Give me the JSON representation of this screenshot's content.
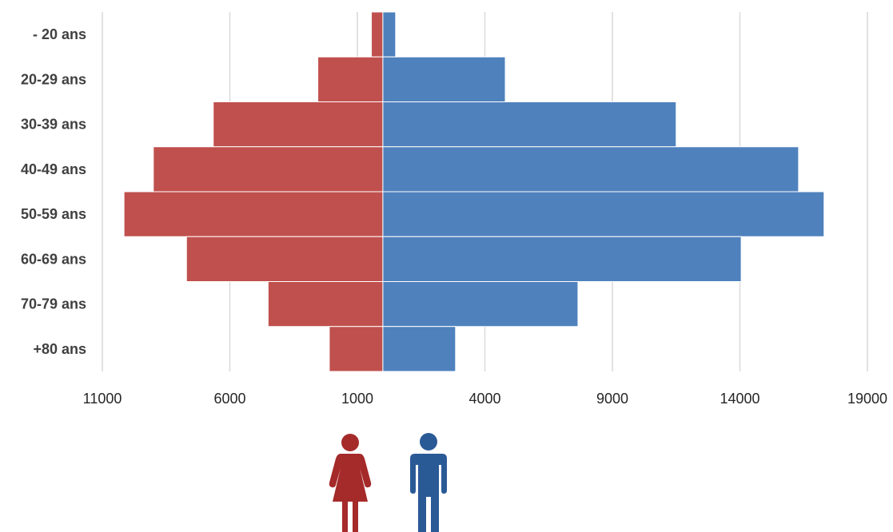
{
  "chart_data": {
    "type": "bar",
    "orientation": "horizontal",
    "style": "population-pyramid",
    "categories": [
      "- 20 ans",
      "20-29 ans",
      "30-39 ans",
      "40-49 ans",
      "50-59 ans",
      "60-69 ans",
      "70-79 ans",
      "+80 ans"
    ],
    "series": [
      {
        "color": "#c0504d",
        "side": "left",
        "values": [
          450,
          2550,
          6650,
          9000,
          10150,
          7700,
          4500,
          2100
        ]
      },
      {
        "color": "#4f81bd",
        "side": "right",
        "values": [
          500,
          4800,
          11500,
          16300,
          17300,
          14050,
          7650,
          2850
        ]
      }
    ],
    "tick_labels": [
      "11000",
      "6000",
      "1000",
      "4000",
      "9000",
      "14000",
      "19000"
    ],
    "xlim": [
      -11000,
      19000
    ],
    "grid": true,
    "title": "",
    "xlabel": "",
    "ylabel": ""
  },
  "icons": {
    "female": {
      "name": "female-person-icon",
      "color": "#a52a2a"
    },
    "male": {
      "name": "male-person-icon",
      "color": "#2a5a96"
    }
  }
}
